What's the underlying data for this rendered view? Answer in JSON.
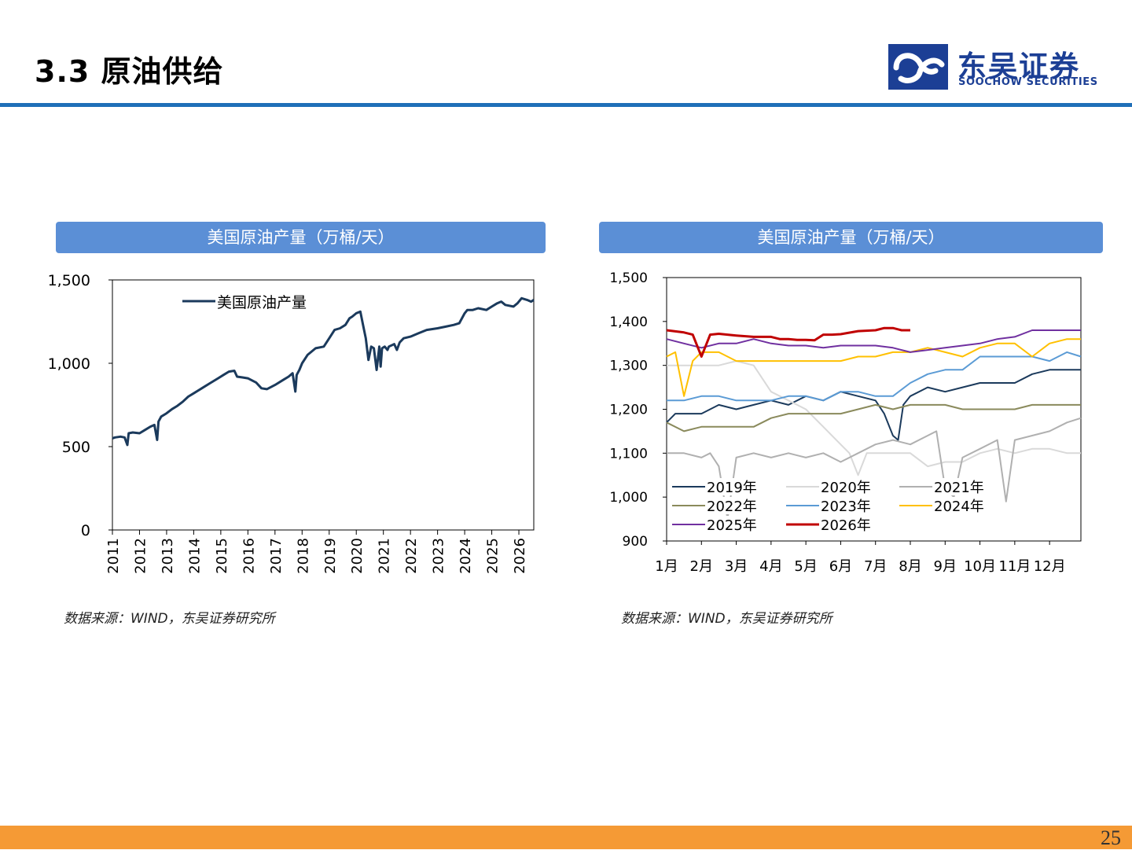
{
  "header": {
    "title": "3.3 原油供给",
    "logo_cn": "东吴证券",
    "logo_en": "SOOCHOW SECURITIES",
    "accent_color": "#1f6fb8",
    "logo_color": "#1c3f95",
    "logo_icon": "soochow-logo-icon"
  },
  "footer": {
    "page_number": "25",
    "bar_color": "#f59a35"
  },
  "chart_data": [
    {
      "type": "line",
      "header": "美国原油产量（万桶/天）",
      "source": "数据来源：WIND，东吴证券研究所",
      "xlabel": "",
      "ylabel": "",
      "ylim": [
        0,
        1500
      ],
      "y_ticks": [
        0,
        500,
        1000,
        1500
      ],
      "y_tick_labels": [
        "0",
        "500",
        "1,000",
        "1,500"
      ],
      "x_range": [
        2011,
        2026.55
      ],
      "x_ticks": [
        2011,
        2012,
        2013,
        2014,
        2015,
        2016,
        2017,
        2018,
        2019,
        2020,
        2021,
        2022,
        2023,
        2024,
        2025,
        2026
      ],
      "x_tick_labels": [
        "2011",
        "2012",
        "2013",
        "2014",
        "2015",
        "2016",
        "2017",
        "2018",
        "2019",
        "2020",
        "2021",
        "2022",
        "2023",
        "2024",
        "2025",
        "2026"
      ],
      "legend_position": "top",
      "grid": false,
      "series": [
        {
          "name": "美国原油产量",
          "color": "#1b3a5c",
          "x": [
            2011.0,
            2011.1,
            2011.3,
            2011.45,
            2011.55,
            2011.6,
            2011.75,
            2012.0,
            2012.2,
            2012.4,
            2012.55,
            2012.65,
            2012.7,
            2012.75,
            2012.8,
            2013.0,
            2013.2,
            2013.4,
            2013.6,
            2013.8,
            2014.0,
            2014.3,
            2014.6,
            2014.9,
            2015.1,
            2015.3,
            2015.5,
            2015.6,
            2015.8,
            2016.0,
            2016.3,
            2016.5,
            2016.7,
            2017.0,
            2017.3,
            2017.5,
            2017.65,
            2017.75,
            2017.8,
            2017.9,
            2018.0,
            2018.2,
            2018.5,
            2018.8,
            2019.0,
            2019.2,
            2019.4,
            2019.6,
            2019.75,
            2019.85,
            2020.0,
            2020.15,
            2020.25,
            2020.35,
            2020.45,
            2020.55,
            2020.65,
            2020.75,
            2020.85,
            2020.9,
            2020.95,
            2021.05,
            2021.15,
            2021.2,
            2021.4,
            2021.5,
            2021.6,
            2021.75,
            2022.0,
            2022.3,
            2022.6,
            2023.0,
            2023.3,
            2023.6,
            2023.8,
            2024.0,
            2024.1,
            2024.3,
            2024.5,
            2024.8,
            2025.0,
            2025.2,
            2025.35,
            2025.5,
            2025.8,
            2025.95,
            2026.1,
            2026.3,
            2026.45,
            2026.55
          ],
          "values": [
            550,
            555,
            560,
            555,
            510,
            580,
            585,
            580,
            600,
            620,
            630,
            540,
            650,
            665,
            680,
            700,
            725,
            745,
            770,
            800,
            820,
            850,
            880,
            910,
            930,
            950,
            955,
            920,
            915,
            910,
            885,
            850,
            845,
            870,
            900,
            920,
            940,
            830,
            930,
            960,
            1000,
            1050,
            1090,
            1100,
            1150,
            1200,
            1210,
            1230,
            1270,
            1280,
            1300,
            1310,
            1230,
            1150,
            1020,
            1100,
            1090,
            960,
            1100,
            980,
            1090,
            1100,
            1080,
            1100,
            1115,
            1080,
            1125,
            1150,
            1160,
            1180,
            1200,
            1210,
            1220,
            1230,
            1240,
            1300,
            1320,
            1320,
            1330,
            1320,
            1340,
            1360,
            1370,
            1350,
            1340,
            1360,
            1390,
            1380,
            1370,
            1380
          ]
        }
      ]
    },
    {
      "type": "line",
      "header": "美国原油产量（万桶/天）",
      "source": "数据来源：WIND，东吴证券研究所",
      "xlabel": "",
      "ylabel": "",
      "ylim": [
        900,
        1500
      ],
      "y_ticks": [
        900,
        1000,
        1100,
        1200,
        1300,
        1400,
        1500
      ],
      "y_tick_labels": [
        "900",
        "1,000",
        "1,100",
        "1,200",
        "1,300",
        "1,400",
        "1,500"
      ],
      "x_range": [
        1,
        12.9
      ],
      "x_ticks": [
        1,
        2,
        3,
        4,
        5,
        6,
        7,
        8,
        9,
        10,
        11,
        12
      ],
      "x_tick_labels": [
        "1月",
        "2月",
        "3月",
        "4月",
        "5月",
        "6月",
        "7月",
        "8月",
        "9月",
        "10月",
        "11月",
        "12月"
      ],
      "legend_position": "bottom-left",
      "grid": false,
      "series": [
        {
          "name": "2019年",
          "color": "#1b3a5c",
          "x": [
            1,
            1.25,
            1.5,
            2,
            2.5,
            3,
            3.5,
            4,
            4.5,
            5,
            5.5,
            6,
            6.5,
            7,
            7.25,
            7.5,
            7.65,
            7.8,
            8,
            8.5,
            9,
            9.5,
            10,
            10.5,
            11,
            11.5,
            12,
            12.5,
            12.9
          ],
          "values": [
            1170,
            1190,
            1190,
            1190,
            1210,
            1200,
            1210,
            1220,
            1210,
            1230,
            1220,
            1240,
            1230,
            1220,
            1190,
            1140,
            1130,
            1210,
            1230,
            1250,
            1240,
            1250,
            1260,
            1260,
            1260,
            1280,
            1290,
            1290,
            1290
          ]
        },
        {
          "name": "2020年",
          "color": "#d9d9d9",
          "x": [
            1,
            1.25,
            1.5,
            2,
            2.5,
            3,
            3.5,
            4,
            4.5,
            5,
            5.5,
            6,
            6.25,
            6.5,
            6.75,
            7,
            7.5,
            8,
            8.5,
            9,
            9.5,
            10,
            10.5,
            11,
            11.5,
            12,
            12.5,
            12.9
          ],
          "values": [
            1300,
            1300,
            1300,
            1300,
            1300,
            1310,
            1300,
            1240,
            1220,
            1200,
            1160,
            1120,
            1100,
            1050,
            1100,
            1100,
            1100,
            1100,
            1070,
            1080,
            1080,
            1100,
            1110,
            1100,
            1110,
            1110,
            1100,
            1100
          ]
        },
        {
          "name": "2021年",
          "color": "#b0b0b0",
          "x": [
            1,
            1.5,
            2,
            2.25,
            2.5,
            2.75,
            3,
            3.5,
            4,
            4.5,
            5,
            5.5,
            6,
            6.5,
            7,
            7.5,
            8,
            8.5,
            8.75,
            9,
            9.25,
            9.5,
            10,
            10.5,
            10.75,
            11,
            11.5,
            12,
            12.5,
            12.9
          ],
          "values": [
            1100,
            1100,
            1090,
            1100,
            1070,
            950,
            1090,
            1100,
            1090,
            1100,
            1090,
            1100,
            1080,
            1100,
            1120,
            1130,
            1120,
            1140,
            1150,
            1020,
            1000,
            1090,
            1110,
            1130,
            990,
            1130,
            1140,
            1150,
            1170,
            1180
          ]
        },
        {
          "name": "2022年",
          "color": "#8a8a5c",
          "x": [
            1,
            1.5,
            2,
            2.5,
            3,
            3.5,
            4,
            4.5,
            5,
            5.5,
            6,
            6.5,
            7,
            7.5,
            8,
            8.5,
            9,
            9.5,
            10,
            10.5,
            11,
            11.5,
            12,
            12.5,
            12.9
          ],
          "values": [
            1170,
            1150,
            1160,
            1160,
            1160,
            1160,
            1180,
            1190,
            1190,
            1190,
            1190,
            1200,
            1210,
            1200,
            1210,
            1210,
            1210,
            1200,
            1200,
            1200,
            1200,
            1210,
            1210,
            1210,
            1210
          ]
        },
        {
          "name": "2023年",
          "color": "#5b9bd5",
          "x": [
            1,
            1.5,
            2,
            2.5,
            3,
            3.5,
            4,
            4.5,
            5,
            5.5,
            6,
            6.5,
            7,
            7.5,
            8,
            8.5,
            9,
            9.5,
            10,
            10.5,
            11,
            11.5,
            12,
            12.5,
            12.9
          ],
          "values": [
            1220,
            1220,
            1230,
            1230,
            1220,
            1220,
            1220,
            1230,
            1230,
            1220,
            1240,
            1240,
            1230,
            1230,
            1260,
            1280,
            1290,
            1290,
            1320,
            1320,
            1320,
            1320,
            1310,
            1330,
            1320
          ]
        },
        {
          "name": "2024年",
          "color": "#ffc000",
          "x": [
            1,
            1.25,
            1.5,
            1.75,
            2,
            2.5,
            3,
            3.5,
            4,
            4.5,
            5,
            5.5,
            6,
            6.5,
            7,
            7.5,
            8,
            8.5,
            9,
            9.5,
            10,
            10.5,
            11,
            11.5,
            12,
            12.5,
            12.9
          ],
          "values": [
            1320,
            1330,
            1230,
            1310,
            1330,
            1330,
            1310,
            1310,
            1310,
            1310,
            1310,
            1310,
            1310,
            1320,
            1320,
            1330,
            1330,
            1340,
            1330,
            1320,
            1340,
            1350,
            1350,
            1320,
            1350,
            1360,
            1360
          ]
        },
        {
          "name": "2025年",
          "color": "#7030a0",
          "x": [
            1,
            1.5,
            2,
            2.5,
            3,
            3.5,
            4,
            4.5,
            5,
            5.5,
            6,
            6.5,
            7,
            7.5,
            8,
            8.5,
            9,
            9.5,
            10,
            10.5,
            11,
            11.5,
            12,
            12.5,
            12.9
          ],
          "values": [
            1360,
            1350,
            1340,
            1350,
            1350,
            1360,
            1350,
            1345,
            1345,
            1340,
            1345,
            1345,
            1345,
            1340,
            1330,
            1335,
            1340,
            1345,
            1350,
            1360,
            1365,
            1380,
            1380,
            1380,
            1380
          ]
        },
        {
          "name": "2026年",
          "color": "#c00000",
          "x": [
            1,
            1.5,
            1.75,
            2,
            2.25,
            2.5,
            3,
            3.5,
            4,
            4.25,
            4.5,
            4.75,
            5,
            5.25,
            5.5,
            5.75,
            6,
            6.5,
            7,
            7.25,
            7.5,
            7.75,
            8
          ],
          "values": [
            1380,
            1375,
            1370,
            1320,
            1370,
            1372,
            1368,
            1365,
            1365,
            1360,
            1360,
            1358,
            1358,
            1357,
            1370,
            1370,
            1371,
            1378,
            1380,
            1385,
            1385,
            1380,
            1380
          ]
        }
      ]
    }
  ]
}
